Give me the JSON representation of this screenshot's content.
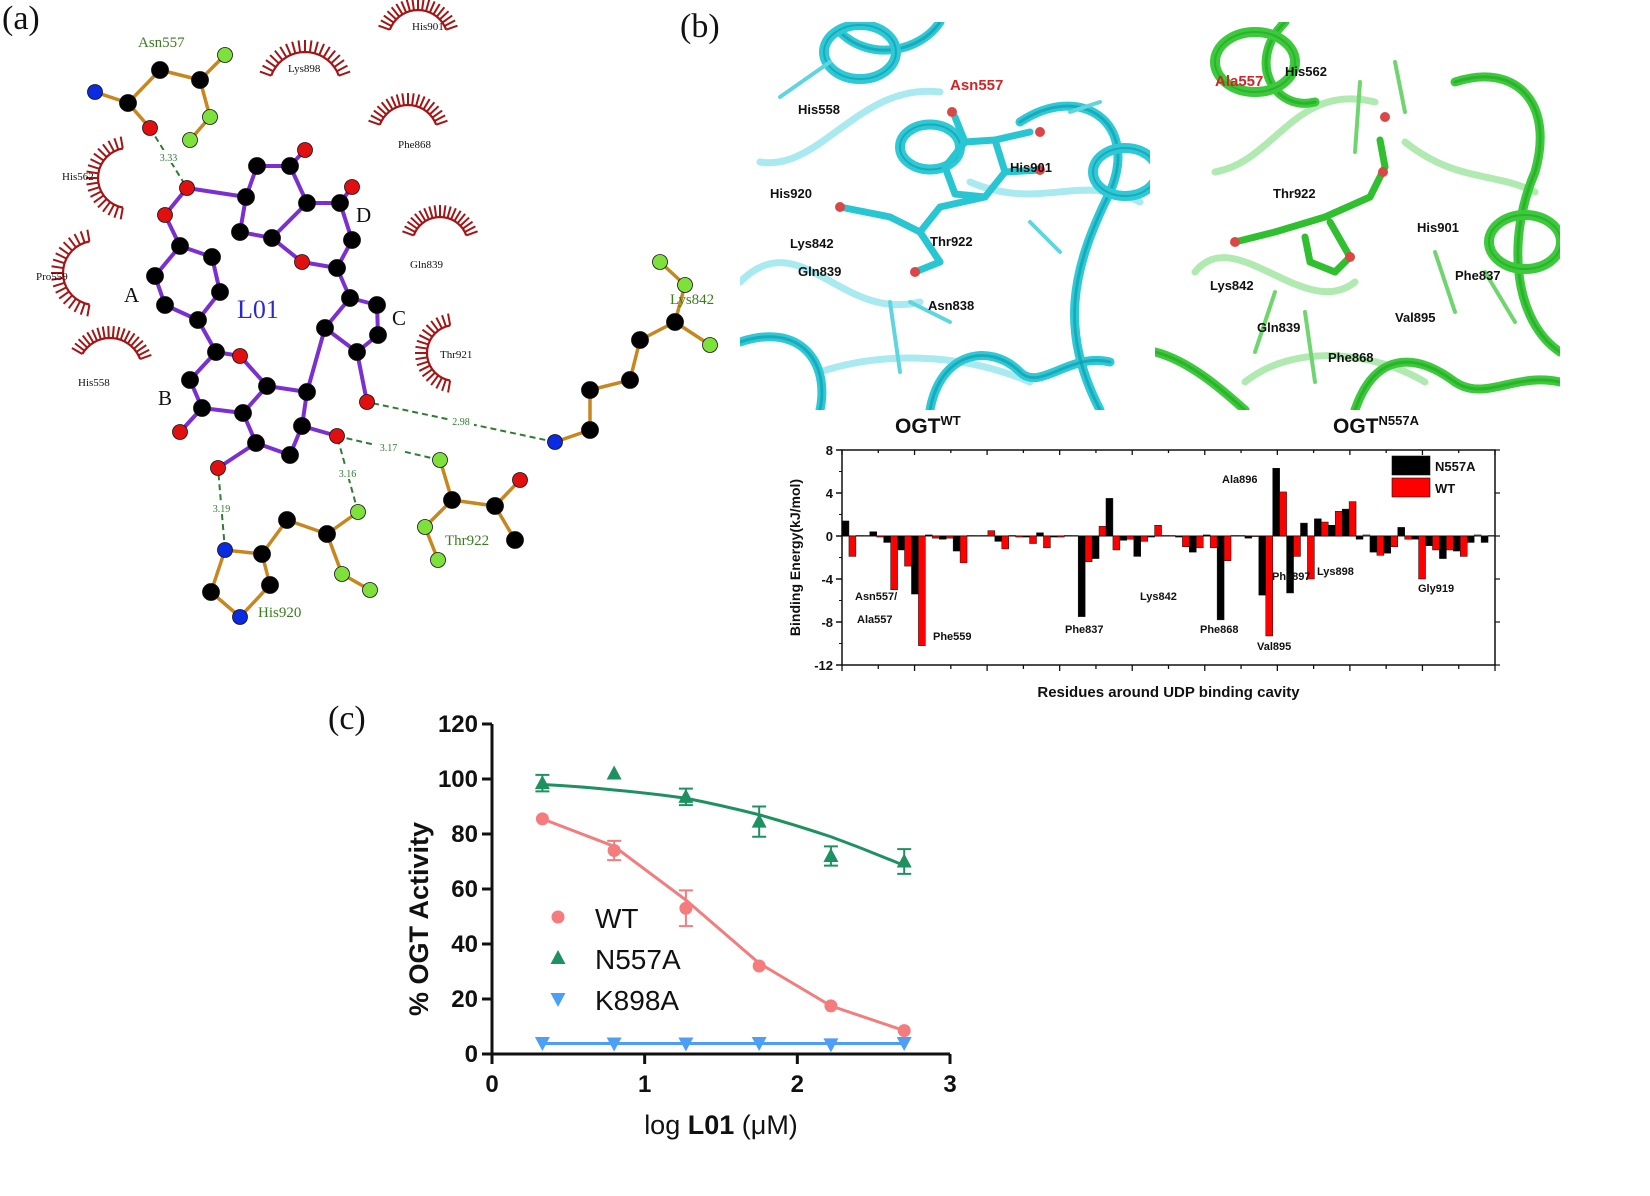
{
  "panels": {
    "a": {
      "label": "(a)"
    },
    "b": {
      "label": "(b)"
    },
    "c": {
      "label": "(c)"
    }
  },
  "ligplot": {
    "ligand_name": "L01",
    "ring_labels": [
      "A",
      "B",
      "C",
      "D"
    ],
    "hbond_residues": [
      {
        "name": "Asn557",
        "distance": "3.33"
      },
      {
        "name": "Lys842",
        "distance": "2.98"
      },
      {
        "name": "Thr922",
        "distance": "3.17"
      },
      {
        "name": "His920",
        "distance": "3.19"
      },
      {
        "name": "His920-N",
        "distance": "3.16"
      }
    ],
    "hydrophobic_residues": [
      "His901",
      "Lys898",
      "Phe868",
      "His562",
      "Pro559",
      "Gln839",
      "Thr921",
      "His558"
    ],
    "colors": {
      "ligand_bond": "#7b2fd0",
      "residue_bond": "#c8861f",
      "hbond": "#2e7d32",
      "hydrophobic": "#a31515",
      "carbon": "#000000",
      "oxygen": "#e01010",
      "nitrogen": "#0a2be0",
      "backbone": "#7ee03a",
      "residue_label": "#3a7d1e",
      "ligand_label": "#2b2bc9"
    }
  },
  "structures": {
    "wt": {
      "title": "OGT",
      "superscript": "WT",
      "color": "#2ec9d6",
      "highlight_label": "Asn557",
      "labels": [
        "His558",
        "His920",
        "Lys842",
        "Gln839",
        "Thr922",
        "Asn838",
        "His901"
      ]
    },
    "mutant": {
      "title": "OGT",
      "superscript": "N557A",
      "color": "#3cc93c",
      "highlight_label": "Ala557",
      "labels": [
        "His562",
        "Thr922",
        "His901",
        "Lys842",
        "Gln839",
        "Val895",
        "Phe868",
        "Phe837"
      ]
    }
  },
  "chart_data": [
    {
      "type": "bar",
      "title": "",
      "xlabel": "Residues around UDP binding cavity",
      "ylabel": "Binding Energy(kJ/mol)",
      "ylim": [
        -12,
        8
      ],
      "yticks": [
        8,
        4,
        0,
        -4,
        -8,
        -12
      ],
      "legend": {
        "position": "top-right",
        "entries": [
          "N557A",
          "WT"
        ]
      },
      "series": [
        {
          "name": "N557A",
          "color": "#000000",
          "values": [
            1.4,
            0.05,
            0.4,
            -0.6,
            -1.3,
            -5.4,
            0.1,
            -0.3,
            -1.4,
            0.05,
            0.05,
            -0.5,
            0.05,
            -0.1,
            0.3,
            -0.1,
            0.05,
            -7.5,
            -2.1,
            3.5,
            -0.4,
            -1.9,
            -0.1,
            0.05,
            -0.1,
            -1.5,
            0.1,
            -7.8,
            0.05,
            -0.2,
            -5.5,
            6.3,
            -5.3,
            1.2,
            1.6,
            1.0,
            2.5,
            -0.3,
            -1.5,
            -1.6,
            0.8,
            -0.3,
            -0.9,
            -2.1,
            -1.4,
            -0.6,
            -0.6
          ]
        },
        {
          "name": "WT",
          "color": "#ff0000",
          "values": [
            -1.9,
            0.05,
            -0.1,
            -5.0,
            -2.8,
            -10.2,
            -0.2,
            -0.2,
            -2.5,
            0.05,
            0.5,
            -1.2,
            -0.1,
            -0.7,
            -1.1,
            -0.1,
            0.05,
            -2.4,
            0.9,
            -1.3,
            -0.3,
            -0.5,
            1.0,
            0.05,
            -1.0,
            -1.1,
            -1.1,
            -2.3,
            0.05,
            0,
            -9.3,
            4.1,
            -1.9,
            -4.0,
            1.3,
            2.3,
            3.2,
            0.1,
            -1.8,
            -1.0,
            -0.3,
            -4.0,
            -1.3,
            -1.3,
            -1.9,
            0.1,
            0.05
          ]
        }
      ],
      "annotations": [
        {
          "text": "Asn557/",
          "index": 3
        },
        {
          "text": "Ala557",
          "index": 3
        },
        {
          "text": "Phe559",
          "index": 5
        },
        {
          "text": "Phe837",
          "index": 17
        },
        {
          "text": "Lys842",
          "index": 21
        },
        {
          "text": "Phe868",
          "index": 27
        },
        {
          "text": "Val895",
          "index": 30
        },
        {
          "text": "Ala896",
          "index": 31
        },
        {
          "text": "Phe897",
          "index": 32
        },
        {
          "text": "Lys898",
          "index": 33
        },
        {
          "text": "Gly919",
          "index": 41
        }
      ]
    },
    {
      "type": "scatter",
      "title": "",
      "xlabel_prefix": "log ",
      "xlabel_bold": "L01",
      "xlabel_suffix": " (μM)",
      "ylabel": "% OGT Activity",
      "xlim": [
        0,
        3
      ],
      "ylim": [
        0,
        120
      ],
      "xticks": [
        0,
        1,
        2,
        3
      ],
      "yticks": [
        0,
        20,
        40,
        60,
        80,
        100,
        120
      ],
      "legend": {
        "position": "lower-left",
        "entries": [
          "WT",
          "N557A",
          "K898A"
        ]
      },
      "series": [
        {
          "name": "WT",
          "marker": "circle",
          "color": "#f47c7c",
          "x": [
            0.33,
            0.8,
            1.27,
            1.75,
            2.22,
            2.7
          ],
          "y": [
            85.5,
            74,
            53,
            32,
            17.5,
            8.5
          ],
          "err": [
            0,
            3.5,
            6.5,
            0,
            0,
            0
          ]
        },
        {
          "name": "N557A",
          "marker": "triangle-up",
          "color": "#1e9160",
          "x": [
            0.33,
            0.8,
            1.27,
            1.75,
            2.22,
            2.7
          ],
          "y": [
            98.5,
            102,
            93.5,
            84.5,
            72,
            70
          ],
          "err": [
            3,
            0,
            3,
            5.5,
            3.5,
            4.5
          ]
        },
        {
          "name": "K898A",
          "marker": "triangle-down",
          "color": "#4d9ff5",
          "x": [
            0.33,
            0.8,
            1.27,
            1.75,
            2.22,
            2.7
          ],
          "y": [
            4,
            3.8,
            3.8,
            4,
            3.5,
            4
          ],
          "err": [
            0,
            0,
            0,
            0,
            0,
            0
          ]
        }
      ],
      "fit_curves": [
        {
          "name": "WT",
          "y": [
            85.5,
            75.5,
            56,
            33,
            17.5,
            8.5
          ]
        },
        {
          "name": "N557A",
          "y": [
            98,
            96,
            93,
            87,
            79,
            68.5
          ]
        },
        {
          "name": "K898A",
          "y": [
            3.8,
            3.8,
            3.8,
            3.8,
            3.8,
            3.8
          ]
        }
      ]
    }
  ]
}
